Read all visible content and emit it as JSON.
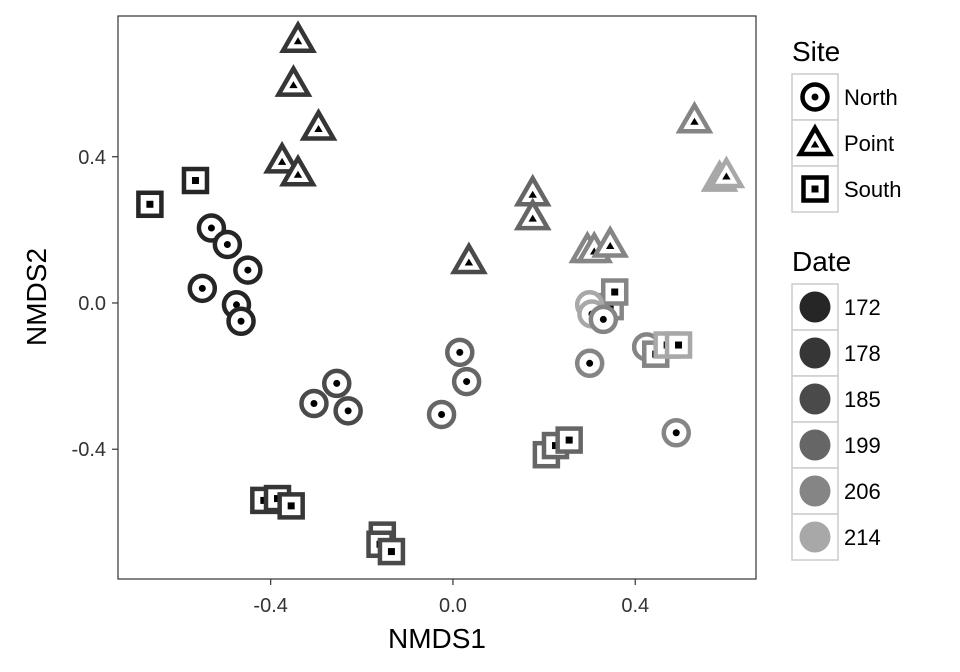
{
  "chart_data": {
    "type": "scatter",
    "xlabel": "NMDS1",
    "ylabel": "NMDS2",
    "xlim": [
      -0.735,
      0.665
    ],
    "ylim": [
      -0.755,
      0.785
    ],
    "x_ticks": [
      -0.4,
      0.0,
      0.4
    ],
    "x_tick_labels": [
      "-0.4",
      "0.0",
      "0.4"
    ],
    "y_ticks": [
      -0.4,
      0.0,
      0.4
    ],
    "y_tick_labels": [
      "-0.4",
      "0.0",
      "0.4"
    ],
    "grid": false,
    "legend_position": "right",
    "legends": {
      "shape": {
        "title": "Site",
        "entries": [
          {
            "label": "North",
            "shape": "circle"
          },
          {
            "label": "Point",
            "shape": "triangle"
          },
          {
            "label": "South",
            "shape": "square"
          }
        ]
      },
      "color": {
        "title": "Date",
        "entries": [
          {
            "label": "172",
            "color": "#262626"
          },
          {
            "label": "178",
            "color": "#363636"
          },
          {
            "label": "185",
            "color": "#4a4a4a"
          },
          {
            "label": "199",
            "color": "#666666"
          },
          {
            "label": "206",
            "color": "#858585"
          },
          {
            "label": "214",
            "color": "#a8a8a8"
          }
        ]
      }
    },
    "points": [
      {
        "site": "North",
        "date": "172",
        "x": -0.55,
        "y": 0.04
      },
      {
        "site": "North",
        "date": "172",
        "x": -0.53,
        "y": 0.205
      },
      {
        "site": "North",
        "date": "172",
        "x": -0.495,
        "y": 0.16
      },
      {
        "site": "North",
        "date": "172",
        "x": -0.45,
        "y": 0.09
      },
      {
        "site": "North",
        "date": "172",
        "x": -0.475,
        "y": -0.005
      },
      {
        "site": "North",
        "date": "172",
        "x": -0.465,
        "y": -0.05
      },
      {
        "site": "South",
        "date": "172",
        "x": -0.665,
        "y": 0.27
      },
      {
        "site": "South",
        "date": "172",
        "x": -0.565,
        "y": 0.335
      },
      {
        "site": "Point",
        "date": "178",
        "x": -0.34,
        "y": 0.72
      },
      {
        "site": "Point",
        "date": "178",
        "x": -0.35,
        "y": 0.6
      },
      {
        "site": "Point",
        "date": "178",
        "x": -0.295,
        "y": 0.48
      },
      {
        "site": "Point",
        "date": "178",
        "x": -0.375,
        "y": 0.39
      },
      {
        "site": "Point",
        "date": "178",
        "x": -0.34,
        "y": 0.355
      },
      {
        "site": "North",
        "date": "185",
        "x": -0.305,
        "y": -0.275
      },
      {
        "site": "North",
        "date": "185",
        "x": -0.255,
        "y": -0.22
      },
      {
        "site": "North",
        "date": "185",
        "x": -0.23,
        "y": -0.295
      },
      {
        "site": "South",
        "date": "178",
        "x": -0.415,
        "y": -0.54
      },
      {
        "site": "South",
        "date": "178",
        "x": -0.385,
        "y": -0.535
      },
      {
        "site": "South",
        "date": "178",
        "x": -0.355,
        "y": -0.555
      },
      {
        "site": "South",
        "date": "185",
        "x": -0.155,
        "y": -0.635
      },
      {
        "site": "South",
        "date": "185",
        "x": -0.16,
        "y": -0.66
      },
      {
        "site": "South",
        "date": "185",
        "x": -0.135,
        "y": -0.68
      },
      {
        "site": "North",
        "date": "199",
        "x": 0.015,
        "y": -0.135
      },
      {
        "site": "North",
        "date": "199",
        "x": 0.03,
        "y": -0.215
      },
      {
        "site": "North",
        "date": "199",
        "x": -0.025,
        "y": -0.305
      },
      {
        "site": "Point",
        "date": "185",
        "x": 0.035,
        "y": 0.115
      },
      {
        "site": "Point",
        "date": "199",
        "x": 0.175,
        "y": 0.3
      },
      {
        "site": "Point",
        "date": "199",
        "x": 0.175,
        "y": 0.235
      },
      {
        "site": "South",
        "date": "199",
        "x": 0.205,
        "y": -0.415
      },
      {
        "site": "South",
        "date": "199",
        "x": 0.225,
        "y": -0.39
      },
      {
        "site": "South",
        "date": "199",
        "x": 0.255,
        "y": -0.375
      },
      {
        "site": "Point",
        "date": "206",
        "x": 0.295,
        "y": 0.145
      },
      {
        "site": "Point",
        "date": "206",
        "x": 0.31,
        "y": 0.145
      },
      {
        "site": "Point",
        "date": "206",
        "x": 0.345,
        "y": 0.16
      },
      {
        "site": "South",
        "date": "206",
        "x": 0.345,
        "y": -0.01
      },
      {
        "site": "South",
        "date": "206",
        "x": 0.355,
        "y": 0.03
      },
      {
        "site": "North",
        "date": "214",
        "x": 0.3,
        "y": -0.005
      },
      {
        "site": "North",
        "date": "214",
        "x": 0.305,
        "y": -0.03
      },
      {
        "site": "North",
        "date": "206",
        "x": 0.33,
        "y": -0.045
      },
      {
        "site": "North",
        "date": "206",
        "x": 0.3,
        "y": -0.165
      },
      {
        "site": "North",
        "date": "206",
        "x": 0.49,
        "y": -0.355
      },
      {
        "site": "North",
        "date": "206",
        "x": 0.425,
        "y": -0.12
      },
      {
        "site": "South",
        "date": "206",
        "x": 0.445,
        "y": -0.14
      },
      {
        "site": "South",
        "date": "214",
        "x": 0.47,
        "y": -0.115
      },
      {
        "site": "South",
        "date": "214",
        "x": 0.495,
        "y": -0.115
      },
      {
        "site": "Point",
        "date": "206",
        "x": 0.53,
        "y": 0.5
      },
      {
        "site": "Point",
        "date": "214",
        "x": 0.585,
        "y": 0.34
      },
      {
        "site": "Point",
        "date": "214",
        "x": 0.6,
        "y": 0.35
      }
    ]
  }
}
